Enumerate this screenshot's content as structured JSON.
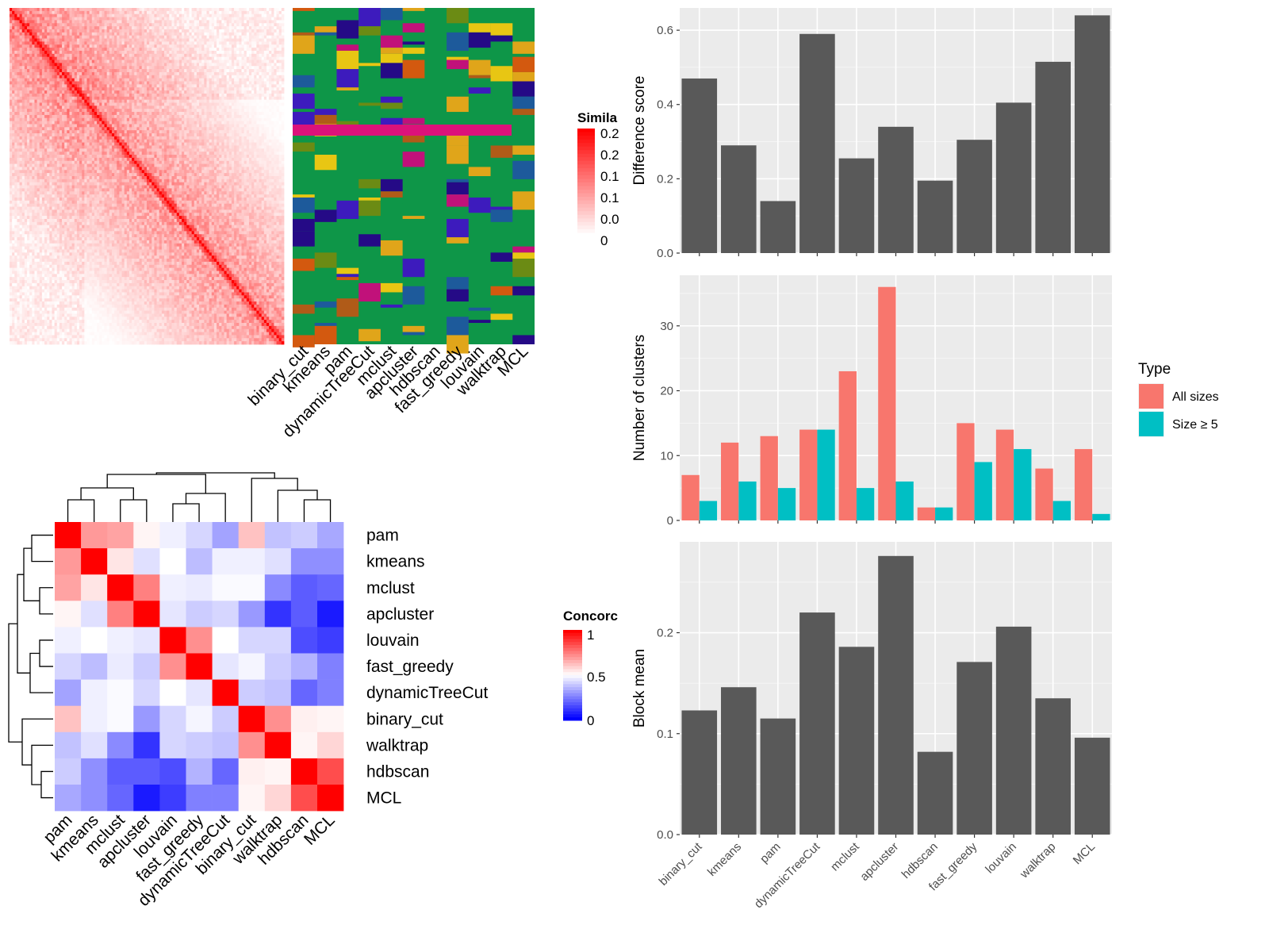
{
  "similarity_heatmap": {
    "legend_title": "Simila",
    "legend_ticks": [
      "0.2",
      "0.2",
      "0.1",
      "0.1",
      "0.0",
      "0"
    ],
    "method_columns": [
      "binary_cut",
      "kmeans",
      "pam",
      "dynamicTreeCut",
      "mclust",
      "apcluster",
      "hdbscan",
      "fast_greedy",
      "louvain",
      "walktrap",
      "MCL"
    ],
    "colors": {
      "high": "#ff0000",
      "low": "#ffffff",
      "bg": "#0e9648"
    }
  },
  "concordance_heatmap": {
    "legend_title": "Concorc",
    "legend_ticks": [
      "1",
      "0.5",
      "0"
    ],
    "rows": [
      "pam",
      "kmeans",
      "mclust",
      "apcluster",
      "louvain",
      "fast_greedy",
      "dynamicTreeCut",
      "binary_cut",
      "walktrap",
      "hdbscan",
      "MCL"
    ],
    "values": [
      [
        1.0,
        0.7,
        0.68,
        0.52,
        0.47,
        0.42,
        0.32,
        0.62,
        0.38,
        0.4,
        0.33
      ],
      [
        0.7,
        1.0,
        0.55,
        0.44,
        0.5,
        0.37,
        0.47,
        0.47,
        0.44,
        0.28,
        0.28
      ],
      [
        0.68,
        0.55,
        1.0,
        0.75,
        0.47,
        0.46,
        0.49,
        0.49,
        0.27,
        0.18,
        0.2
      ],
      [
        0.52,
        0.44,
        0.75,
        1.0,
        0.45,
        0.4,
        0.42,
        0.3,
        0.1,
        0.18,
        0.05
      ],
      [
        0.47,
        0.5,
        0.47,
        0.45,
        1.0,
        0.72,
        0.5,
        0.42,
        0.42,
        0.15,
        0.12
      ],
      [
        0.42,
        0.37,
        0.46,
        0.4,
        0.72,
        1.0,
        0.45,
        0.48,
        0.4,
        0.35,
        0.25
      ],
      [
        0.32,
        0.47,
        0.49,
        0.42,
        0.5,
        0.45,
        1.0,
        0.4,
        0.38,
        0.2,
        0.25
      ],
      [
        0.62,
        0.47,
        0.49,
        0.3,
        0.42,
        0.48,
        0.4,
        1.0,
        0.72,
        0.53,
        0.52
      ],
      [
        0.38,
        0.44,
        0.27,
        0.1,
        0.42,
        0.4,
        0.38,
        0.72,
        1.0,
        0.52,
        0.58
      ],
      [
        0.4,
        0.28,
        0.18,
        0.18,
        0.15,
        0.35,
        0.2,
        0.53,
        0.52,
        1.0,
        0.85
      ],
      [
        0.33,
        0.28,
        0.2,
        0.05,
        0.12,
        0.25,
        0.25,
        0.52,
        0.58,
        0.85,
        1.0
      ]
    ],
    "colors": {
      "high": "#ff0000",
      "mid": "#ffffff",
      "low": "#0000ff"
    }
  },
  "chart_data": [
    {
      "type": "bar",
      "categories": [
        "binary_cut",
        "kmeans",
        "pam",
        "dynamicTreeCut",
        "mclust",
        "apcluster",
        "hdbscan",
        "fast_greedy",
        "louvain",
        "walktrap",
        "MCL"
      ],
      "values": [
        0.47,
        0.29,
        0.14,
        0.59,
        0.255,
        0.34,
        0.195,
        0.305,
        0.405,
        0.515,
        0.64
      ],
      "ylabel": "Difference score",
      "ylim": [
        0,
        0.66
      ],
      "yticks": [
        "0.0",
        "0.2",
        "0.4",
        "0.6"
      ],
      "grid": true,
      "bar_color": "#595959"
    },
    {
      "type": "bar",
      "categories": [
        "binary_cut",
        "kmeans",
        "pam",
        "dynamicTreeCut",
        "mclust",
        "apcluster",
        "hdbscan",
        "fast_greedy",
        "louvain",
        "walktrap",
        "MCL"
      ],
      "series": [
        {
          "name": "All sizes",
          "values": [
            7,
            12,
            13,
            14,
            23,
            36,
            2,
            15,
            14,
            8,
            11
          ],
          "color": "#f8766d"
        },
        {
          "name": "Size ≥ 5",
          "values": [
            3,
            6,
            5,
            14,
            5,
            6,
            2,
            9,
            11,
            3,
            1
          ],
          "color": "#00bfc4"
        }
      ],
      "ylabel": "Number of clusters",
      "ylim": [
        0,
        37.8
      ],
      "yticks": [
        "0",
        "10",
        "20",
        "30"
      ],
      "legend_title": "Type",
      "legend_position": "right",
      "grid": true
    },
    {
      "type": "bar",
      "categories": [
        "binary_cut",
        "kmeans",
        "pam",
        "dynamicTreeCut",
        "mclust",
        "apcluster",
        "hdbscan",
        "fast_greedy",
        "louvain",
        "walktrap",
        "MCL"
      ],
      "values": [
        0.123,
        0.146,
        0.115,
        0.22,
        0.186,
        0.276,
        0.082,
        0.171,
        0.206,
        0.135,
        0.096
      ],
      "ylabel": "Block mean",
      "ylim": [
        0,
        0.29
      ],
      "yticks": [
        "0.0",
        "0.1",
        "0.2"
      ],
      "grid": true,
      "bar_color": "#595959"
    }
  ]
}
